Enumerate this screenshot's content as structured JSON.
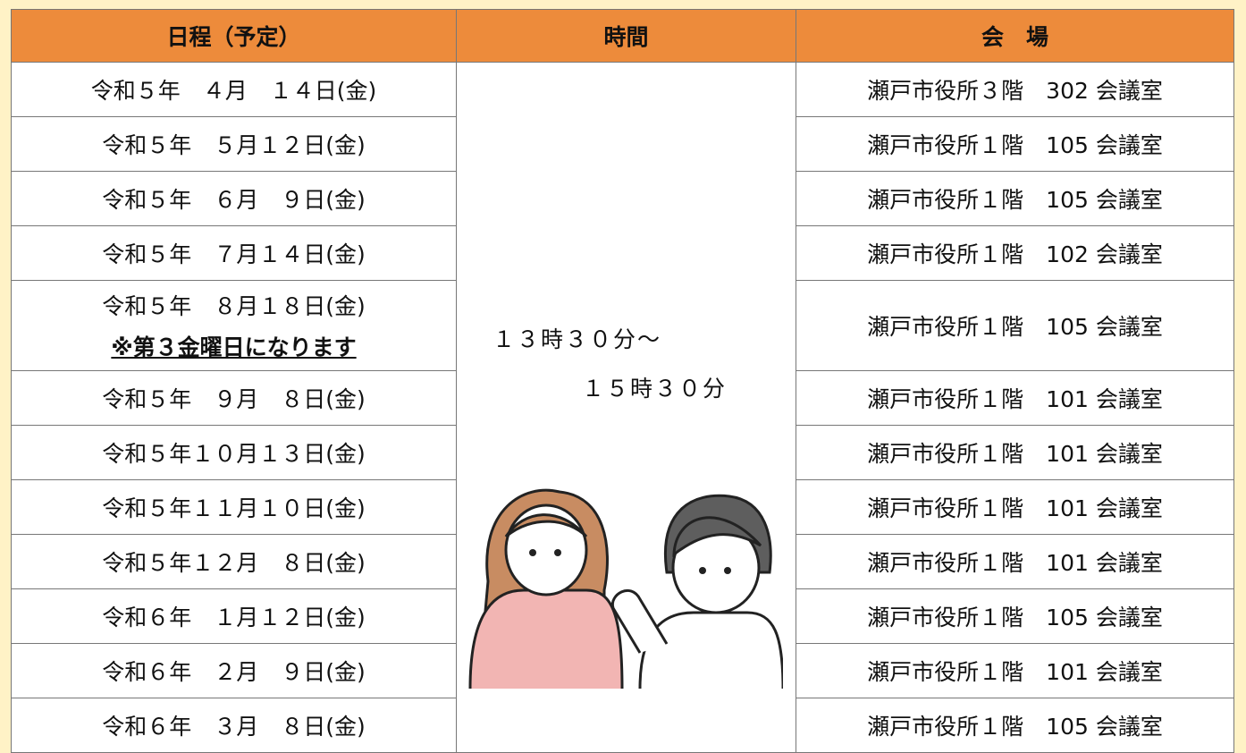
{
  "header": [
    "日程（予定）",
    "時間",
    "会　場"
  ],
  "time": [
    "１３時３０分～",
    "１５時３０分"
  ],
  "rows": [
    {
      "date": "令和５年　４月　１４日(金)",
      "venue": "瀬戸市役所３階　302 会議室"
    },
    {
      "date": "令和５年　５月１２日(金)",
      "venue": "瀬戸市役所１階　105 会議室"
    },
    {
      "date": "令和５年　６月　９日(金)",
      "venue": "瀬戸市役所１階　105 会議室"
    },
    {
      "date": "令和５年　７月１４日(金)",
      "venue": "瀬戸市役所１階　102 会議室"
    },
    {
      "date": "令和５年　８月１８日(金)",
      "note": "※第３金曜日になります",
      "venue": "瀬戸市役所１階　105 会議室"
    },
    {
      "date": "令和５年　９月　８日(金)",
      "venue": "瀬戸市役所１階　101 会議室"
    },
    {
      "date": "令和５年１０月１３日(金)",
      "venue": "瀬戸市役所１階　101 会議室"
    },
    {
      "date": "令和５年１１月１０日(金)",
      "venue": "瀬戸市役所１階　101 会議室"
    },
    {
      "date": "令和５年１２月　８日(金)",
      "venue": "瀬戸市役所１階　101 会議室"
    },
    {
      "date": "令和６年　１月１２日(金)",
      "venue": "瀬戸市役所１階　105 会議室"
    },
    {
      "date": "令和６年　２月　９日(金)",
      "venue": "瀬戸市役所１階　101 会議室"
    },
    {
      "date": "令和６年　３月　８日(金)",
      "venue": "瀬戸市役所１階　105 会議室"
    }
  ]
}
